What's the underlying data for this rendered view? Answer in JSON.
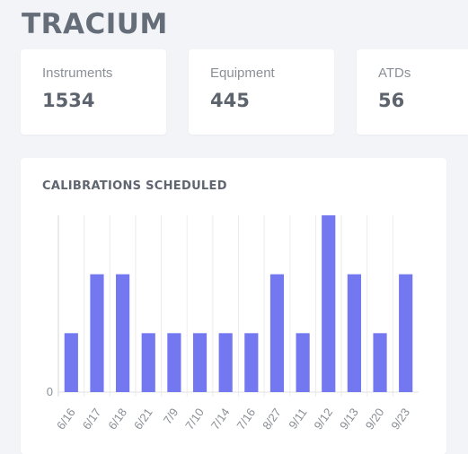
{
  "app": {
    "title": "TRACIUM"
  },
  "stats": [
    {
      "label": "Instruments",
      "value": "1534"
    },
    {
      "label": "Equipment",
      "value": "445"
    },
    {
      "label": "ATDs",
      "value": "56"
    }
  ],
  "chart_card": {
    "title": "CALIBRATIONS SCHEDULED"
  },
  "chart_data": {
    "type": "bar",
    "title": "CALIBRATIONS SCHEDULED",
    "categories": [
      "6/16",
      "6/17",
      "6/18",
      "6/21",
      "7/9",
      "7/10",
      "7/14",
      "7/16",
      "8/27",
      "9/11",
      "9/12",
      "9/13",
      "9/20",
      "9/23"
    ],
    "values": [
      1,
      2,
      2,
      1,
      1,
      1,
      1,
      1,
      2,
      1,
      3,
      2,
      1,
      2
    ],
    "y_ticks": [
      "0"
    ],
    "ylim": [
      0,
      3
    ],
    "grid": true,
    "bar_color": "#7478f0"
  },
  "colors": {
    "background": "#f3f4f7",
    "card": "#ffffff",
    "bar": "#7478f0",
    "grid": "#ececec",
    "axis_text": "#8a8f96"
  }
}
